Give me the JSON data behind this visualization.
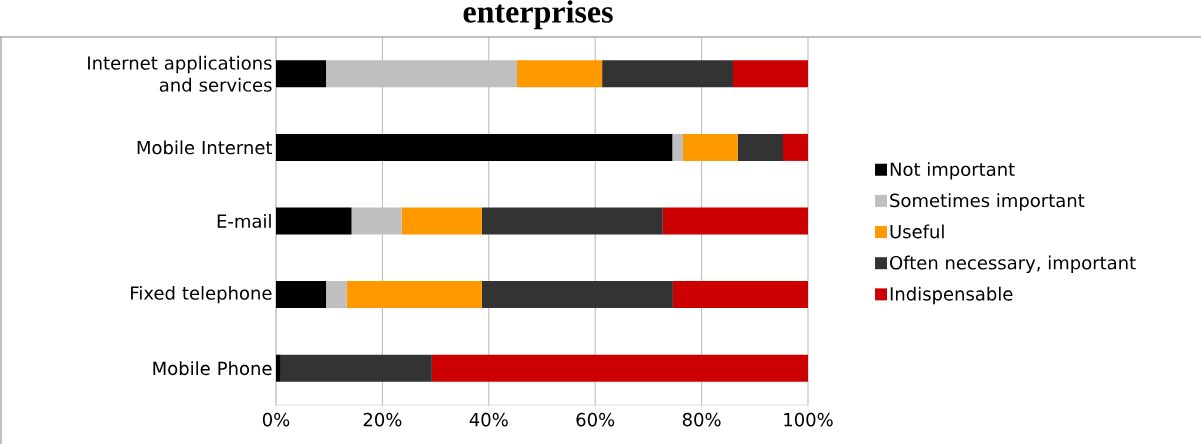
{
  "chart_data": {
    "type": "bar",
    "orientation": "horizontal",
    "stacked": true,
    "title": "enterprises",
    "categories": [
      "Internet applications and services",
      "Mobile Internet",
      "E-mail",
      "Fixed telephone",
      "Mobile Phone"
    ],
    "series": [
      {
        "name": "Not important",
        "color": "#000000",
        "values": [
          9.4,
          74.5,
          14.2,
          9.4,
          0.9
        ]
      },
      {
        "name": "Sometimes important",
        "color": "#bfbfbf",
        "values": [
          35.9,
          2.0,
          9.4,
          3.9,
          0
        ]
      },
      {
        "name": "Useful",
        "color": "#ff9900",
        "values": [
          16.0,
          10.3,
          15.1,
          25.4,
          0
        ]
      },
      {
        "name": "Often necessary, important",
        "color": "#333333",
        "values": [
          24.6,
          8.5,
          34.0,
          35.9,
          28.4
        ]
      },
      {
        "name": "Indispensable",
        "color": "#cc0000",
        "values": [
          14.1,
          4.7,
          27.3,
          25.4,
          70.7
        ]
      }
    ],
    "xlim": [
      0,
      100
    ],
    "xticks": [
      {
        "value": 0,
        "label": "0%"
      },
      {
        "value": 20,
        "label": "20%"
      },
      {
        "value": 40,
        "label": "40%"
      },
      {
        "value": 60,
        "label": "60%"
      },
      {
        "value": 80,
        "label": "80%"
      },
      {
        "value": 100,
        "label": "100%"
      }
    ],
    "grid": "x",
    "legend": "right"
  }
}
